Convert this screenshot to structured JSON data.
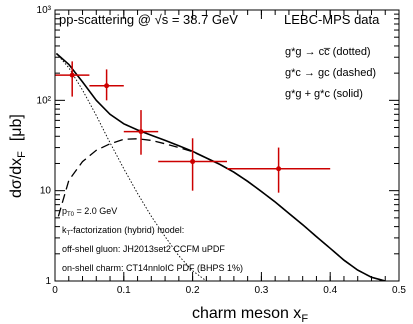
{
  "chart_data": {
    "type": "scatter",
    "title": "pp-scattering @ √s = 38.7 GeV",
    "experiment_label": "LEBC-MPS data",
    "xlabel": "charm meson x",
    "xlabel_sub": "F",
    "ylabel": "dσ/dx",
    "ylabel_sub": "F",
    "ylabel_unit": "[μb]",
    "xlim": [
      0,
      0.5
    ],
    "ylim": [
      1,
      1000
    ],
    "yscale": "log",
    "x_ticks": [
      {
        "v": 0,
        "label": "0"
      },
      {
        "v": 0.1,
        "label": "0.1"
      },
      {
        "v": 0.2,
        "label": "0.2"
      },
      {
        "v": 0.3,
        "label": "0.3"
      },
      {
        "v": 0.4,
        "label": "0.4"
      },
      {
        "v": 0.5,
        "label": "0.5"
      }
    ],
    "y_ticks": [
      {
        "v": 1,
        "label": "1"
      },
      {
        "v": 10,
        "label": "10"
      },
      {
        "v": 100,
        "label": "10²"
      },
      {
        "v": 1000,
        "label": "10³"
      }
    ],
    "legend": [
      "g*g → cc̅ (dotted)",
      "g*c → gc (dashed)",
      "g*g + g*c (solid)"
    ],
    "annotations": [
      "p",
      "T0",
      " = 2.0 GeV",
      "k",
      "T",
      "-factorization (hybrid) model:",
      "off-shell gluon: JH2013set2 CCFM uPDF",
      "on-shell charm: CT14nnloIC PDF (BHPS 1%)"
    ],
    "data_points": [
      {
        "x": 0.025,
        "y": 190,
        "xerr": 0.025,
        "y_low": 110,
        "y_high": 270
      },
      {
        "x": 0.075,
        "y": 145,
        "xerr": 0.025,
        "y_low": 100,
        "y_high": 220
      },
      {
        "x": 0.125,
        "y": 45,
        "xerr": 0.025,
        "y_low": 25,
        "y_high": 78
      },
      {
        "x": 0.2,
        "y": 21,
        "xerr": 0.05,
        "y_low": 10,
        "y_high": 38
      },
      {
        "x": 0.325,
        "y": 17.5,
        "xerr": 0.075,
        "y_low": 9.5,
        "y_high": 30
      }
    ],
    "series": [
      {
        "name": "g*g + g*c (solid)",
        "style": "solid",
        "x": [
          0.002,
          0.02,
          0.04,
          0.06,
          0.08,
          0.1,
          0.12,
          0.14,
          0.16,
          0.18,
          0.2,
          0.22,
          0.24,
          0.26,
          0.28,
          0.3,
          0.32,
          0.34,
          0.36,
          0.38,
          0.4,
          0.42,
          0.44,
          0.46,
          0.48
        ],
        "values": [
          330,
          250,
          160,
          100,
          70,
          55,
          47,
          41,
          36,
          31.5,
          27.3,
          23,
          19.5,
          16,
          12.7,
          9.8,
          7.5,
          5.6,
          4.2,
          3.1,
          2.3,
          1.7,
          1.32,
          1.1,
          1.0
        ]
      },
      {
        "name": "g*c → gc (dashed)",
        "style": "dashed",
        "x": [
          0.005,
          0.02,
          0.04,
          0.06,
          0.08,
          0.1,
          0.12,
          0.14,
          0.16,
          0.18,
          0.2,
          0.22,
          0.24,
          0.26,
          0.28,
          0.3,
          0.32,
          0.34,
          0.36,
          0.38,
          0.4,
          0.42,
          0.44,
          0.46,
          0.48
        ],
        "values": [
          5.2,
          13,
          21,
          28,
          33,
          37,
          37.5,
          36,
          33,
          30,
          27,
          23,
          19.5,
          16,
          12.7,
          9.8,
          7.5,
          5.6,
          4.2,
          3.1,
          2.3,
          1.7,
          1.32,
          1.1,
          1.0
        ]
      },
      {
        "name": "g*g → cc̅ (dotted)",
        "style": "dotted",
        "x": [
          0.002,
          0.02,
          0.04,
          0.06,
          0.08,
          0.1,
          0.12,
          0.14,
          0.16,
          0.18,
          0.2,
          0.22
        ],
        "values": [
          330,
          230,
          130,
          68,
          34,
          17.5,
          9.3,
          5.2,
          3.1,
          1.9,
          1.3,
          1.0
        ]
      }
    ]
  }
}
